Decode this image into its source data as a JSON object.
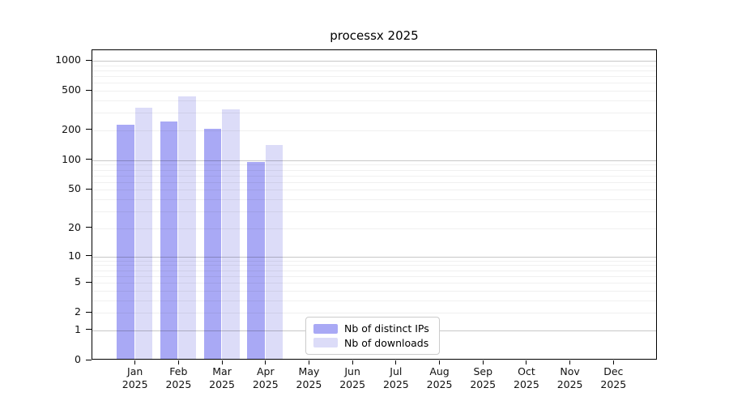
{
  "title": "processx 2025",
  "chart_data": {
    "type": "bar",
    "title": "processx 2025",
    "categories": [
      "Jan 2025",
      "Feb 2025",
      "Mar 2025",
      "Apr 2025",
      "May 2025",
      "Jun 2025",
      "Jul 2025",
      "Aug 2025",
      "Sep 2025",
      "Oct 2025",
      "Nov 2025",
      "Dec 2025"
    ],
    "series": [
      {
        "name": "Nb of distinct IPs",
        "color": "#a9a9f5",
        "values": [
          220,
          235,
          200,
          92,
          null,
          null,
          null,
          null,
          null,
          null,
          null,
          null
        ]
      },
      {
        "name": "Nb of downloads",
        "color": "#dcdcf8",
        "values": [
          325,
          425,
          315,
          137,
          null,
          null,
          null,
          null,
          null,
          null,
          null,
          null
        ]
      }
    ],
    "yscale": "log1p",
    "yticks": [
      0,
      1,
      2,
      5,
      10,
      20,
      50,
      100,
      200,
      500,
      1000
    ],
    "ylim": [
      0,
      1275
    ],
    "xlabel": "",
    "ylabel": "",
    "grid": "on",
    "legend_position": "lower center",
    "colors": {
      "grid_minor": "rgba(0,0,0,0.06)",
      "grid_major": "rgba(0,0,0,0.22)",
      "axis": "#000000",
      "background": "#ffffff"
    }
  }
}
